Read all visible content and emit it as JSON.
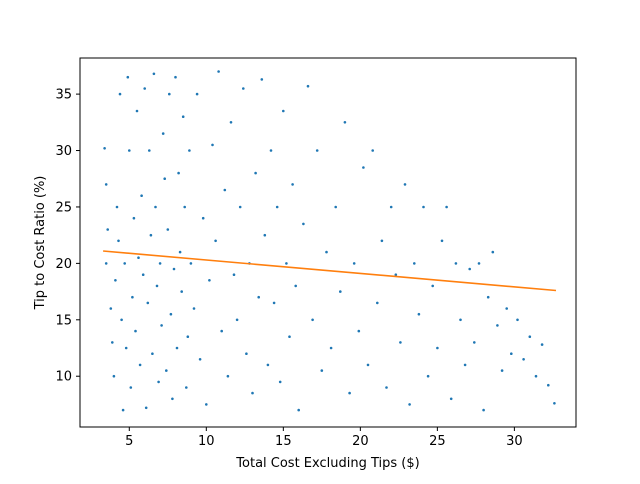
{
  "chart_data": {
    "type": "scatter",
    "title": "",
    "xlabel": "Total Cost Excluding Tips ($)",
    "ylabel": "Tip to Cost Ratio (%)",
    "xlim": [
      1.8,
      34.0
    ],
    "ylim": [
      5.5,
      38.2
    ],
    "x_ticks": [
      5,
      10,
      15,
      20,
      25,
      30
    ],
    "y_ticks": [
      10,
      15,
      20,
      25,
      30,
      35
    ],
    "grid": false,
    "legend": "none",
    "colors": {
      "scatter": "#1f77b4",
      "trend": "#ff7f0e",
      "axes": "#000000",
      "background": "#ffffff"
    },
    "series": [
      {
        "kind": "scatter",
        "points": [
          [
            3.4,
            30.2
          ],
          [
            3.5,
            20.0
          ],
          [
            3.5,
            27.0
          ],
          [
            3.6,
            23.0
          ],
          [
            3.8,
            16.0
          ],
          [
            3.9,
            13.0
          ],
          [
            4.0,
            10.0
          ],
          [
            4.1,
            18.5
          ],
          [
            4.2,
            25.0
          ],
          [
            4.3,
            22.0
          ],
          [
            4.4,
            35.0
          ],
          [
            4.5,
            15.0
          ],
          [
            4.6,
            7.0
          ],
          [
            4.7,
            20.0
          ],
          [
            4.8,
            12.5
          ],
          [
            4.9,
            36.5
          ],
          [
            5.0,
            30.0
          ],
          [
            5.1,
            9.0
          ],
          [
            5.2,
            17.0
          ],
          [
            5.3,
            24.0
          ],
          [
            5.4,
            14.0
          ],
          [
            5.5,
            33.5
          ],
          [
            5.6,
            20.5
          ],
          [
            5.7,
            11.0
          ],
          [
            5.8,
            26.0
          ],
          [
            5.9,
            19.0
          ],
          [
            6.0,
            35.5
          ],
          [
            6.1,
            7.2
          ],
          [
            6.2,
            16.5
          ],
          [
            6.3,
            30.0
          ],
          [
            6.4,
            22.5
          ],
          [
            6.5,
            12.0
          ],
          [
            6.6,
            36.8
          ],
          [
            6.7,
            25.0
          ],
          [
            6.8,
            18.0
          ],
          [
            6.9,
            9.5
          ],
          [
            7.0,
            20.0
          ],
          [
            7.1,
            14.5
          ],
          [
            7.2,
            31.5
          ],
          [
            7.3,
            27.5
          ],
          [
            7.4,
            10.5
          ],
          [
            7.5,
            23.0
          ],
          [
            7.6,
            35.0
          ],
          [
            7.7,
            15.5
          ],
          [
            7.8,
            8.0
          ],
          [
            7.9,
            19.5
          ],
          [
            8.0,
            36.5
          ],
          [
            8.1,
            12.5
          ],
          [
            8.2,
            28.0
          ],
          [
            8.3,
            21.0
          ],
          [
            8.4,
            17.5
          ],
          [
            8.5,
            33.0
          ],
          [
            8.6,
            25.0
          ],
          [
            8.7,
            9.0
          ],
          [
            8.8,
            13.5
          ],
          [
            8.9,
            30.0
          ],
          [
            9.0,
            20.0
          ],
          [
            9.2,
            16.0
          ],
          [
            9.4,
            35.0
          ],
          [
            9.6,
            11.5
          ],
          [
            9.8,
            24.0
          ],
          [
            10.0,
            7.5
          ],
          [
            10.2,
            18.5
          ],
          [
            10.4,
            30.5
          ],
          [
            10.6,
            22.0
          ],
          [
            10.8,
            37.0
          ],
          [
            11.0,
            14.0
          ],
          [
            11.2,
            26.5
          ],
          [
            11.4,
            10.0
          ],
          [
            11.6,
            32.5
          ],
          [
            11.8,
            19.0
          ],
          [
            12.0,
            15.0
          ],
          [
            12.2,
            25.0
          ],
          [
            12.4,
            35.5
          ],
          [
            12.6,
            12.0
          ],
          [
            12.8,
            20.0
          ],
          [
            13.0,
            8.5
          ],
          [
            13.2,
            28.0
          ],
          [
            13.4,
            17.0
          ],
          [
            13.6,
            36.3
          ],
          [
            13.8,
            22.5
          ],
          [
            14.0,
            11.0
          ],
          [
            14.2,
            30.0
          ],
          [
            14.4,
            16.5
          ],
          [
            14.6,
            25.0
          ],
          [
            14.8,
            9.5
          ],
          [
            15.0,
            33.5
          ],
          [
            15.2,
            20.0
          ],
          [
            15.4,
            13.5
          ],
          [
            15.6,
            27.0
          ],
          [
            15.8,
            18.0
          ],
          [
            16.0,
            7.0
          ],
          [
            16.3,
            23.5
          ],
          [
            16.6,
            35.7
          ],
          [
            16.9,
            15.0
          ],
          [
            17.2,
            30.0
          ],
          [
            17.5,
            10.5
          ],
          [
            17.8,
            21.0
          ],
          [
            18.1,
            12.5
          ],
          [
            18.4,
            25.0
          ],
          [
            18.7,
            17.5
          ],
          [
            19.0,
            32.5
          ],
          [
            19.3,
            8.5
          ],
          [
            19.6,
            20.0
          ],
          [
            19.9,
            14.0
          ],
          [
            20.2,
            28.5
          ],
          [
            20.5,
            11.0
          ],
          [
            20.8,
            30.0
          ],
          [
            21.1,
            16.5
          ],
          [
            21.4,
            22.0
          ],
          [
            21.7,
            9.0
          ],
          [
            22.0,
            25.0
          ],
          [
            22.3,
            19.0
          ],
          [
            22.6,
            13.0
          ],
          [
            22.9,
            27.0
          ],
          [
            23.2,
            7.5
          ],
          [
            23.5,
            20.0
          ],
          [
            23.8,
            15.5
          ],
          [
            24.1,
            25.0
          ],
          [
            24.4,
            10.0
          ],
          [
            24.7,
            18.0
          ],
          [
            25.0,
            12.5
          ],
          [
            25.3,
            22.0
          ],
          [
            25.6,
            25.0
          ],
          [
            25.9,
            8.0
          ],
          [
            26.2,
            20.0
          ],
          [
            26.5,
            15.0
          ],
          [
            26.8,
            11.0
          ],
          [
            27.1,
            19.5
          ],
          [
            27.4,
            13.0
          ],
          [
            27.7,
            20.0
          ],
          [
            28.0,
            7.0
          ],
          [
            28.3,
            17.0
          ],
          [
            28.6,
            21.0
          ],
          [
            28.9,
            14.5
          ],
          [
            29.2,
            10.5
          ],
          [
            29.5,
            16.0
          ],
          [
            29.8,
            12.0
          ],
          [
            30.2,
            15.0
          ],
          [
            30.6,
            11.5
          ],
          [
            31.0,
            13.5
          ],
          [
            31.4,
            10.0
          ],
          [
            31.8,
            12.8
          ],
          [
            32.2,
            9.2
          ],
          [
            32.6,
            7.6
          ]
        ]
      },
      {
        "kind": "line",
        "x": [
          3.3,
          32.7
        ],
        "y": [
          21.1,
          17.6
        ]
      }
    ]
  }
}
